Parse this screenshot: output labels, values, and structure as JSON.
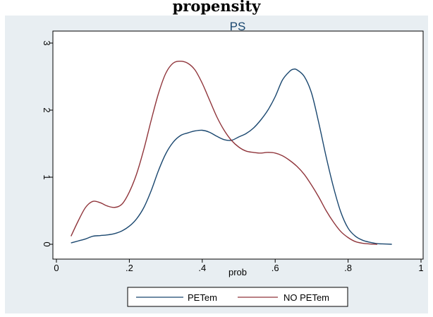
{
  "figure": {
    "header_text": "propensity"
  },
  "chart_data": {
    "type": "line",
    "title": "PS",
    "xlabel": "prob",
    "ylabel": "",
    "xlim": [
      0,
      1
    ],
    "ylim": [
      0,
      3
    ],
    "xticks": [
      0,
      0.2,
      0.4,
      0.6,
      0.8,
      1
    ],
    "xtick_labels": [
      "0",
      ".2",
      ".4",
      ".6",
      ".8",
      "1"
    ],
    "yticks": [
      0,
      1,
      2,
      3
    ],
    "ytick_labels": [
      "0",
      "1",
      "2",
      "3"
    ],
    "grid": false,
    "legend_position": "bottom",
    "series": [
      {
        "name": "PETem",
        "color": "#1a476f",
        "x": [
          0.04,
          0.06,
          0.08,
          0.1,
          0.12,
          0.14,
          0.16,
          0.18,
          0.2,
          0.22,
          0.24,
          0.26,
          0.28,
          0.3,
          0.32,
          0.34,
          0.36,
          0.38,
          0.4,
          0.42,
          0.44,
          0.46,
          0.48,
          0.5,
          0.52,
          0.54,
          0.56,
          0.58,
          0.6,
          0.62,
          0.64,
          0.65,
          0.66,
          0.68,
          0.7,
          0.72,
          0.74,
          0.76,
          0.78,
          0.8,
          0.82,
          0.84,
          0.86,
          0.88,
          0.9,
          0.92
        ],
        "y": [
          0.02,
          0.05,
          0.08,
          0.12,
          0.13,
          0.14,
          0.16,
          0.2,
          0.27,
          0.38,
          0.55,
          0.8,
          1.1,
          1.35,
          1.52,
          1.62,
          1.66,
          1.69,
          1.7,
          1.67,
          1.61,
          1.56,
          1.55,
          1.6,
          1.65,
          1.73,
          1.85,
          2.0,
          2.2,
          2.45,
          2.58,
          2.61,
          2.6,
          2.5,
          2.25,
          1.8,
          1.3,
          0.85,
          0.48,
          0.24,
          0.12,
          0.06,
          0.03,
          0.01,
          0.005,
          0.0
        ]
      },
      {
        "name": "NO PETem",
        "color": "#90353b",
        "x": [
          0.04,
          0.06,
          0.08,
          0.1,
          0.12,
          0.14,
          0.16,
          0.18,
          0.2,
          0.22,
          0.24,
          0.26,
          0.28,
          0.3,
          0.32,
          0.34,
          0.36,
          0.38,
          0.4,
          0.42,
          0.44,
          0.46,
          0.48,
          0.5,
          0.52,
          0.54,
          0.56,
          0.58,
          0.6,
          0.62,
          0.64,
          0.66,
          0.68,
          0.7,
          0.72,
          0.74,
          0.76,
          0.78,
          0.8,
          0.82,
          0.84,
          0.86,
          0.88
        ],
        "y": [
          0.12,
          0.35,
          0.55,
          0.64,
          0.62,
          0.57,
          0.55,
          0.6,
          0.78,
          1.05,
          1.42,
          1.85,
          2.25,
          2.55,
          2.7,
          2.73,
          2.7,
          2.6,
          2.4,
          2.15,
          1.9,
          1.7,
          1.55,
          1.45,
          1.39,
          1.37,
          1.36,
          1.37,
          1.36,
          1.32,
          1.25,
          1.16,
          1.04,
          0.88,
          0.7,
          0.5,
          0.33,
          0.19,
          0.1,
          0.04,
          0.015,
          0.005,
          0.0
        ]
      }
    ]
  }
}
